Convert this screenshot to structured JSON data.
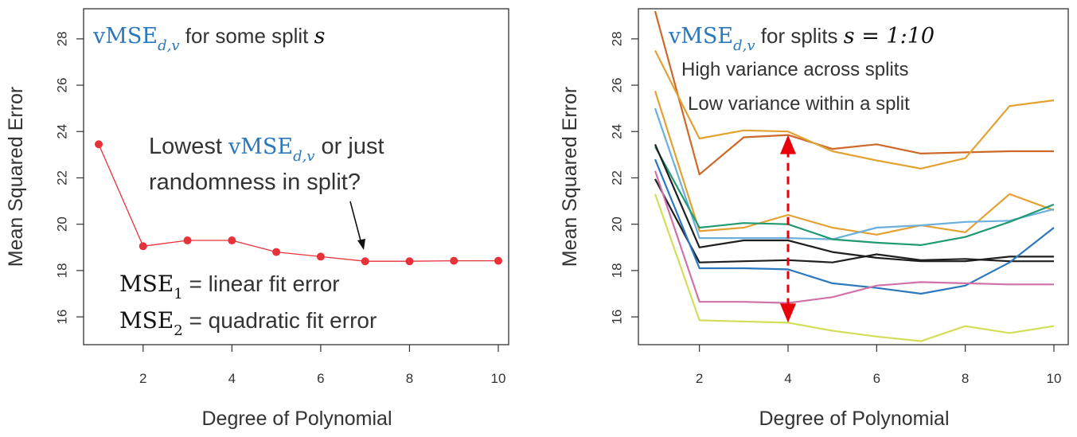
{
  "chart_data": [
    {
      "type": "line",
      "title": "",
      "xlabel": "Degree of Polynomial",
      "ylabel": "Mean Squared Error",
      "xlim": [
        1,
        10
      ],
      "ylim": [
        14.8,
        29.3
      ],
      "x_ticks": [
        2,
        4,
        6,
        8,
        10
      ],
      "y_ticks": [
        16,
        18,
        20,
        22,
        24,
        26,
        28
      ],
      "grid": false,
      "series": [
        {
          "color": "#e8323a",
          "markers": true,
          "x": [
            1,
            2,
            3,
            4,
            5,
            6,
            7,
            8,
            9,
            10
          ],
          "y": [
            23.45,
            19.05,
            19.3,
            19.3,
            18.8,
            18.6,
            18.4,
            18.4,
            18.42,
            18.42
          ]
        }
      ],
      "annotations": {
        "title_vmse": "vMSE",
        "title_sub": "d,v",
        "title_rest": " for some split ",
        "title_s": "s",
        "q_line1_a": "Lowest ",
        "q_vmse": "vMSE",
        "q_sub": "d,v",
        "q_line1_b": " or just",
        "q_line2": "randomness in split?",
        "mse1_base": "MSE",
        "mse1_sub": "1",
        "mse1_rest": " = linear fit error",
        "mse2_base": "MSE",
        "mse2_sub": "2",
        "mse2_rest": " = quadratic fit error"
      }
    },
    {
      "type": "line",
      "title": "",
      "xlabel": "Degree of Polynomial",
      "ylabel": "Mean Squared Error",
      "xlim": [
        1,
        10
      ],
      "ylim": [
        14.8,
        29.3
      ],
      "x_ticks": [
        2,
        4,
        6,
        8,
        10
      ],
      "y_ticks": [
        16,
        18,
        20,
        22,
        24,
        26,
        28
      ],
      "grid": false,
      "series": [
        {
          "color": "#cd6a2a",
          "x": [
            1,
            2,
            3,
            4,
            5,
            6,
            7,
            8,
            9,
            10
          ],
          "y": [
            29.2,
            22.15,
            23.75,
            23.85,
            23.25,
            23.45,
            23.05,
            23.1,
            23.15,
            23.15
          ]
        },
        {
          "color": "#e3a132",
          "x": [
            1,
            2,
            3,
            4,
            5,
            6,
            7,
            8,
            9,
            10
          ],
          "y": [
            27.5,
            23.7,
            24.05,
            24.0,
            23.15,
            22.75,
            22.4,
            22.85,
            25.1,
            25.35
          ]
        },
        {
          "color": "#e3a132",
          "x": [
            1,
            2,
            3,
            4,
            5,
            6,
            7,
            8,
            9,
            10
          ],
          "y": [
            25.75,
            19.7,
            19.85,
            20.4,
            19.85,
            19.55,
            19.95,
            19.65,
            21.3,
            20.6
          ]
        },
        {
          "color": "#6bb0dc",
          "x": [
            1,
            2,
            3,
            4,
            5,
            6,
            7,
            8,
            9,
            10
          ],
          "y": [
            25.0,
            19.4,
            19.4,
            19.4,
            19.35,
            19.85,
            19.95,
            20.1,
            20.15,
            20.65
          ]
        },
        {
          "color": "#1f9a73",
          "x": [
            1,
            2,
            3,
            4,
            5,
            6,
            7,
            8,
            9,
            10
          ],
          "y": [
            23.35,
            19.85,
            20.05,
            20.0,
            19.35,
            19.2,
            19.1,
            19.45,
            20.1,
            20.85
          ]
        },
        {
          "color": "#1f1f1f",
          "x": [
            1,
            2,
            3,
            4,
            5,
            6,
            7,
            8,
            9,
            10
          ],
          "y": [
            23.45,
            19.0,
            19.3,
            19.3,
            18.8,
            18.55,
            18.4,
            18.4,
            18.6,
            18.6
          ]
        },
        {
          "color": "#1f1f1f",
          "x": [
            1,
            2,
            3,
            4,
            5,
            6,
            7,
            8,
            9,
            10
          ],
          "y": [
            21.95,
            18.35,
            18.4,
            18.45,
            18.35,
            18.7,
            18.45,
            18.5,
            18.4,
            18.4
          ]
        },
        {
          "color": "#2b78bf",
          "x": [
            1,
            2,
            3,
            4,
            5,
            6,
            7,
            8,
            9,
            10
          ],
          "y": [
            22.8,
            18.1,
            18.1,
            18.05,
            17.45,
            17.25,
            17.0,
            17.35,
            18.35,
            19.85
          ]
        },
        {
          "color": "#d071a8",
          "x": [
            1,
            2,
            3,
            4,
            5,
            6,
            7,
            8,
            9,
            10
          ],
          "y": [
            22.3,
            16.65,
            16.65,
            16.6,
            16.85,
            17.35,
            17.5,
            17.45,
            17.4,
            17.4
          ]
        },
        {
          "color": "#d4de5a",
          "x": [
            1,
            2,
            3,
            4,
            5,
            6,
            7,
            8,
            9,
            10
          ],
          "y": [
            21.3,
            15.85,
            15.8,
            15.75,
            15.4,
            15.15,
            14.95,
            15.6,
            15.3,
            15.6
          ]
        }
      ],
      "arrow": {
        "color": "#e8000b",
        "x": 4,
        "y_from": 15.75,
        "y_to": 23.85
      },
      "annotations": {
        "title_vmse": "vMSE",
        "title_sub": "d,v",
        "title_rest": " for splits ",
        "title_math": "s = 1:10",
        "high_var": "High variance across splits",
        "high_var_color": "#e8000b",
        "low_var": "Low variance within a split",
        "low_var_color": "#2b78bf"
      }
    }
  ],
  "accent_blue": "#2b78bf"
}
